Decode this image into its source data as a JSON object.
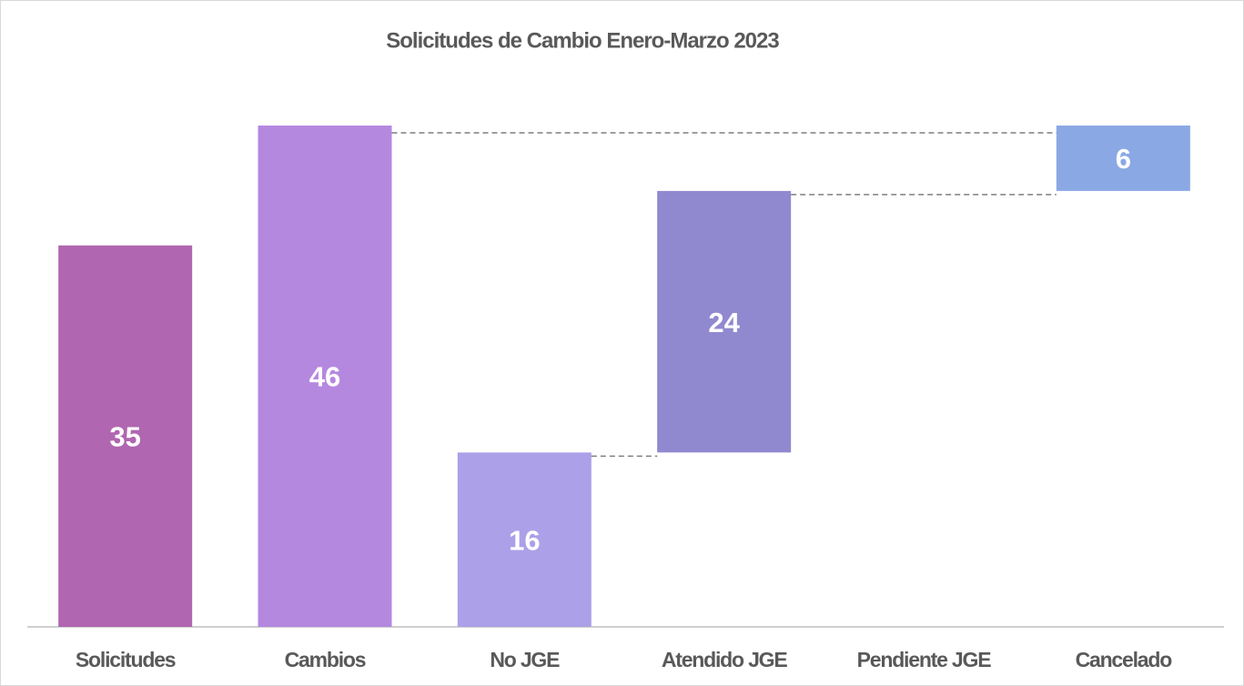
{
  "chart_data": {
    "type": "waterfall",
    "title": "Solicitudes de Cambio Enero-Marzo 2023",
    "categories": [
      "Solicitudes",
      "Cambios",
      "No JGE",
      "Atendido JGE",
      "Pendiente JGE",
      "Cancelado"
    ],
    "values": [
      35,
      46,
      16,
      24,
      null,
      6
    ],
    "measure": [
      "total",
      "total",
      "relative",
      "relative",
      "relative",
      "relative"
    ],
    "colors": [
      "#b066b0",
      "#b588e0",
      "#aca0e8",
      "#9189cf",
      null,
      "#8aa8e4"
    ]
  }
}
